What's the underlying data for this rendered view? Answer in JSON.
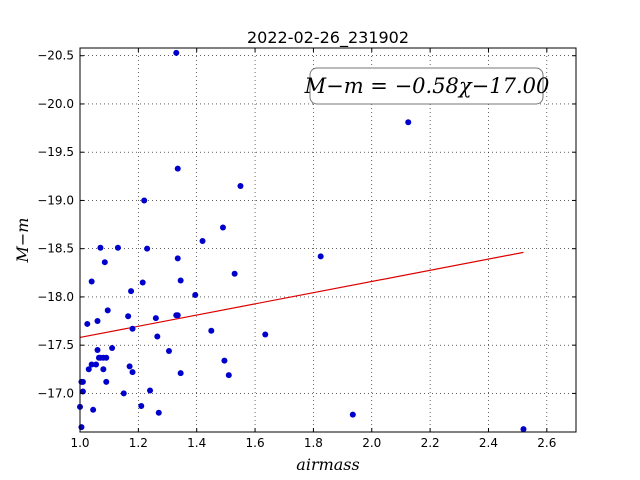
{
  "chart_data": {
    "type": "scatter",
    "title": "2022-02-26_231902",
    "xlabel": "airmass",
    "ylabel": "M−m",
    "xlim": [
      1.0,
      2.7
    ],
    "ylim": [
      -20.58,
      -16.6
    ],
    "y_inverted": true,
    "grid": true,
    "grid_style": "dotted",
    "xticks": [
      1.0,
      1.2,
      1.4,
      1.6,
      1.8,
      2.0,
      2.2,
      2.4,
      2.6
    ],
    "xtick_labels": [
      "1.0",
      "1.2",
      "1.4",
      "1.6",
      "1.8",
      "2.0",
      "2.2",
      "2.4",
      "2.6"
    ],
    "yticks": [
      -17.0,
      -17.5,
      -18.0,
      -18.5,
      -19.0,
      -19.5,
      -20.0,
      -20.5
    ],
    "ytick_labels": [
      "−17.0",
      "−17.5",
      "−18.0",
      "−18.5",
      "−19.0",
      "−19.5",
      "−20.0",
      "−20.5"
    ],
    "points_color": "#0000cc",
    "fit_color": "#dd0000",
    "annotation": "M−m = −0.58χ−17.00",
    "fit": {
      "slope": -0.58,
      "intercept": -17.0,
      "x_range": [
        1.0,
        2.52
      ]
    },
    "series": [
      {
        "x": [
          1.005,
          1.0,
          1.01,
          1.005,
          1.01,
          1.045,
          1.03,
          1.04,
          1.055,
          1.06,
          1.09,
          1.08,
          1.15,
          1.21,
          1.27,
          1.07,
          1.08,
          1.24,
          1.18,
          1.17,
          1.09,
          1.11,
          1.06,
          1.025,
          1.065,
          1.095,
          1.18,
          1.165,
          1.265,
          1.26,
          1.305,
          1.335,
          1.345,
          1.33,
          1.175,
          1.04,
          1.215,
          1.085,
          1.07,
          1.13,
          1.23,
          1.345,
          1.395,
          1.335,
          1.42,
          1.45,
          1.495,
          1.51,
          1.53,
          1.635,
          1.49,
          1.55,
          1.22,
          1.335,
          1.33,
          1.825,
          1.935,
          2.125,
          2.52
        ],
        "y": [
          -16.65,
          -16.86,
          -17.02,
          -17.12,
          -17.12,
          -16.83,
          -17.25,
          -17.3,
          -17.3,
          -17.45,
          -17.12,
          -17.25,
          -17.0,
          -16.87,
          -16.8,
          -17.37,
          -17.37,
          -17.03,
          -17.22,
          -17.28,
          -17.37,
          -17.47,
          -17.75,
          -17.72,
          -17.37,
          -17.86,
          -17.67,
          -17.8,
          -17.59,
          -17.78,
          -17.44,
          -17.81,
          -17.21,
          -17.81,
          -18.06,
          -18.16,
          -18.15,
          -18.36,
          -18.51,
          -18.51,
          -18.5,
          -18.17,
          -18.02,
          -18.4,
          -18.58,
          -17.65,
          -17.34,
          -17.19,
          -18.24,
          -17.61,
          -18.72,
          -19.15,
          -19.0,
          -19.33,
          -20.53,
          -18.42,
          -16.78,
          -19.81,
          -16.63
        ]
      }
    ]
  }
}
